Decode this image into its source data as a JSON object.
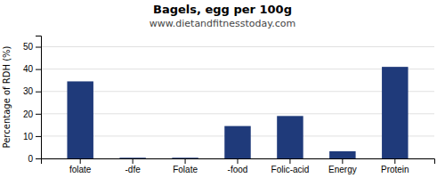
{
  "chart_data": {
    "type": "bar",
    "title": "Bagels, egg per 100g",
    "subtitle": "www.dietandfitnesstoday.com",
    "categories": [
      "folate",
      "-dfe",
      "Folate",
      "-food",
      "Folic-acid",
      "Energy",
      "Protein"
    ],
    "values": [
      34.5,
      0.3,
      0.3,
      14.5,
      19.0,
      3.2,
      41.0
    ],
    "color": "#1f3a7a",
    "ylabel": "Percentage of RDH (%)",
    "ylim": [
      0,
      55
    ],
    "yticks": [
      0,
      10,
      20,
      30,
      40,
      50
    ],
    "grid": true
  }
}
